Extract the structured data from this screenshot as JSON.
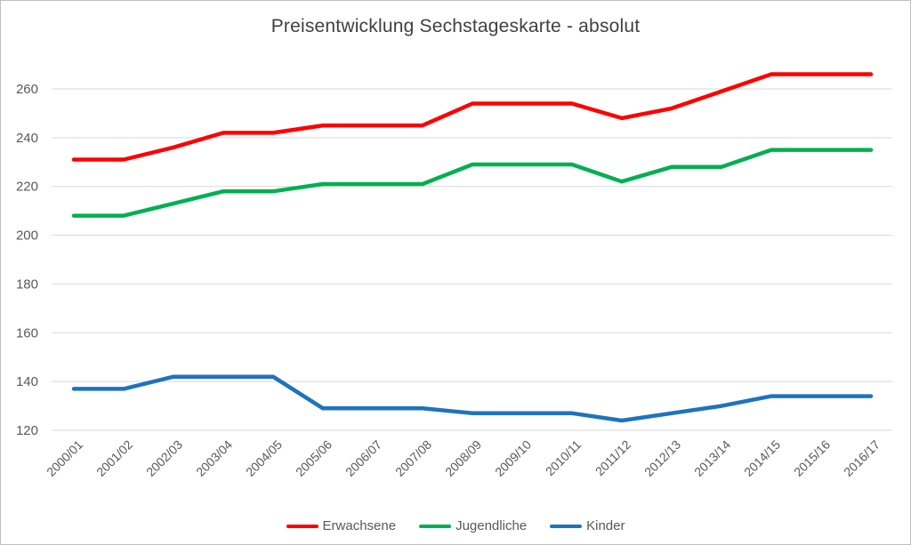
{
  "chart_data": {
    "type": "line",
    "title": "Preisentwicklung Sechstageskarte - absolut",
    "categories": [
      "2000/01",
      "2001/02",
      "2002/03",
      "2003/04",
      "2004/05",
      "2005/06",
      "2006/07",
      "2007/08",
      "2008/09",
      "2009/10",
      "2010/11",
      "2011/12",
      "2012/13",
      "2013/14",
      "2014/15",
      "2015/16",
      "2016/17"
    ],
    "series": [
      {
        "name": "Erwachsene",
        "color": "#fe0000",
        "values": [
          231,
          231,
          236,
          242,
          242,
          245,
          245,
          245,
          254,
          254,
          254,
          248,
          252,
          259,
          266,
          266,
          266
        ]
      },
      {
        "name": "Jugendliche",
        "color": "#00b050",
        "values": [
          208,
          208,
          213,
          218,
          218,
          221,
          221,
          221,
          229,
          229,
          229,
          222,
          228,
          228,
          235,
          235,
          235
        ]
      },
      {
        "name": "Kinder",
        "color": "#1e73be",
        "values": [
          137,
          137,
          142,
          142,
          142,
          129,
          129,
          129,
          127,
          127,
          127,
          124,
          127,
          130,
          134,
          134,
          134
        ]
      }
    ],
    "y_ticks": [
      120,
      140,
      160,
      180,
      200,
      220,
      240,
      260
    ],
    "ylim": [
      120,
      260
    ],
    "xlabel": "",
    "ylabel": "",
    "grid": "horizontal",
    "legend_position": "bottom",
    "colors": {
      "title_text": "#404040",
      "axis_text": "#595959",
      "gridline": "#d9d9d9",
      "border": "#bfbfbf",
      "background": "#ffffff"
    }
  }
}
